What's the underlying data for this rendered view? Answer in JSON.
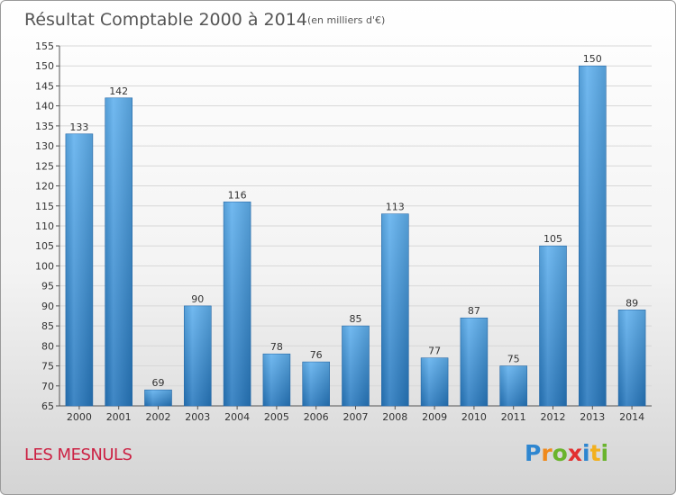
{
  "chart_data": {
    "type": "bar",
    "title": "Résultat Comptable 2000 à 2014",
    "subtitle": "(en milliers d'€)",
    "categories": [
      "2000",
      "2001",
      "2002",
      "2003",
      "2004",
      "2005",
      "2006",
      "2007",
      "2008",
      "2009",
      "2010",
      "2011",
      "2012",
      "2013",
      "2014"
    ],
    "values": [
      133,
      142,
      69,
      90,
      116,
      78,
      76,
      85,
      113,
      77,
      87,
      75,
      105,
      150,
      89
    ],
    "ylim": [
      65,
      155
    ],
    "yticks": [
      65,
      70,
      75,
      80,
      85,
      90,
      95,
      100,
      105,
      110,
      115,
      120,
      125,
      130,
      135,
      140,
      145,
      150,
      155
    ],
    "xlabel": "",
    "ylabel": "",
    "grid": true,
    "bar_color": "#3a8fd6"
  },
  "footer": {
    "commune": "LES MESNULS",
    "logo_text": "Proxiti",
    "logo_letters": [
      {
        "ch": "P",
        "color": "#2e86d0"
      },
      {
        "ch": "r",
        "color": "#f08a1c"
      },
      {
        "ch": "o",
        "color": "#6ab42d"
      },
      {
        "ch": "x",
        "color": "#e23030"
      },
      {
        "ch": "i",
        "color": "#2e86d0"
      },
      {
        "ch": "t",
        "color": "#f2b01e"
      },
      {
        "ch": "i",
        "color": "#6ab42d"
      }
    ]
  }
}
